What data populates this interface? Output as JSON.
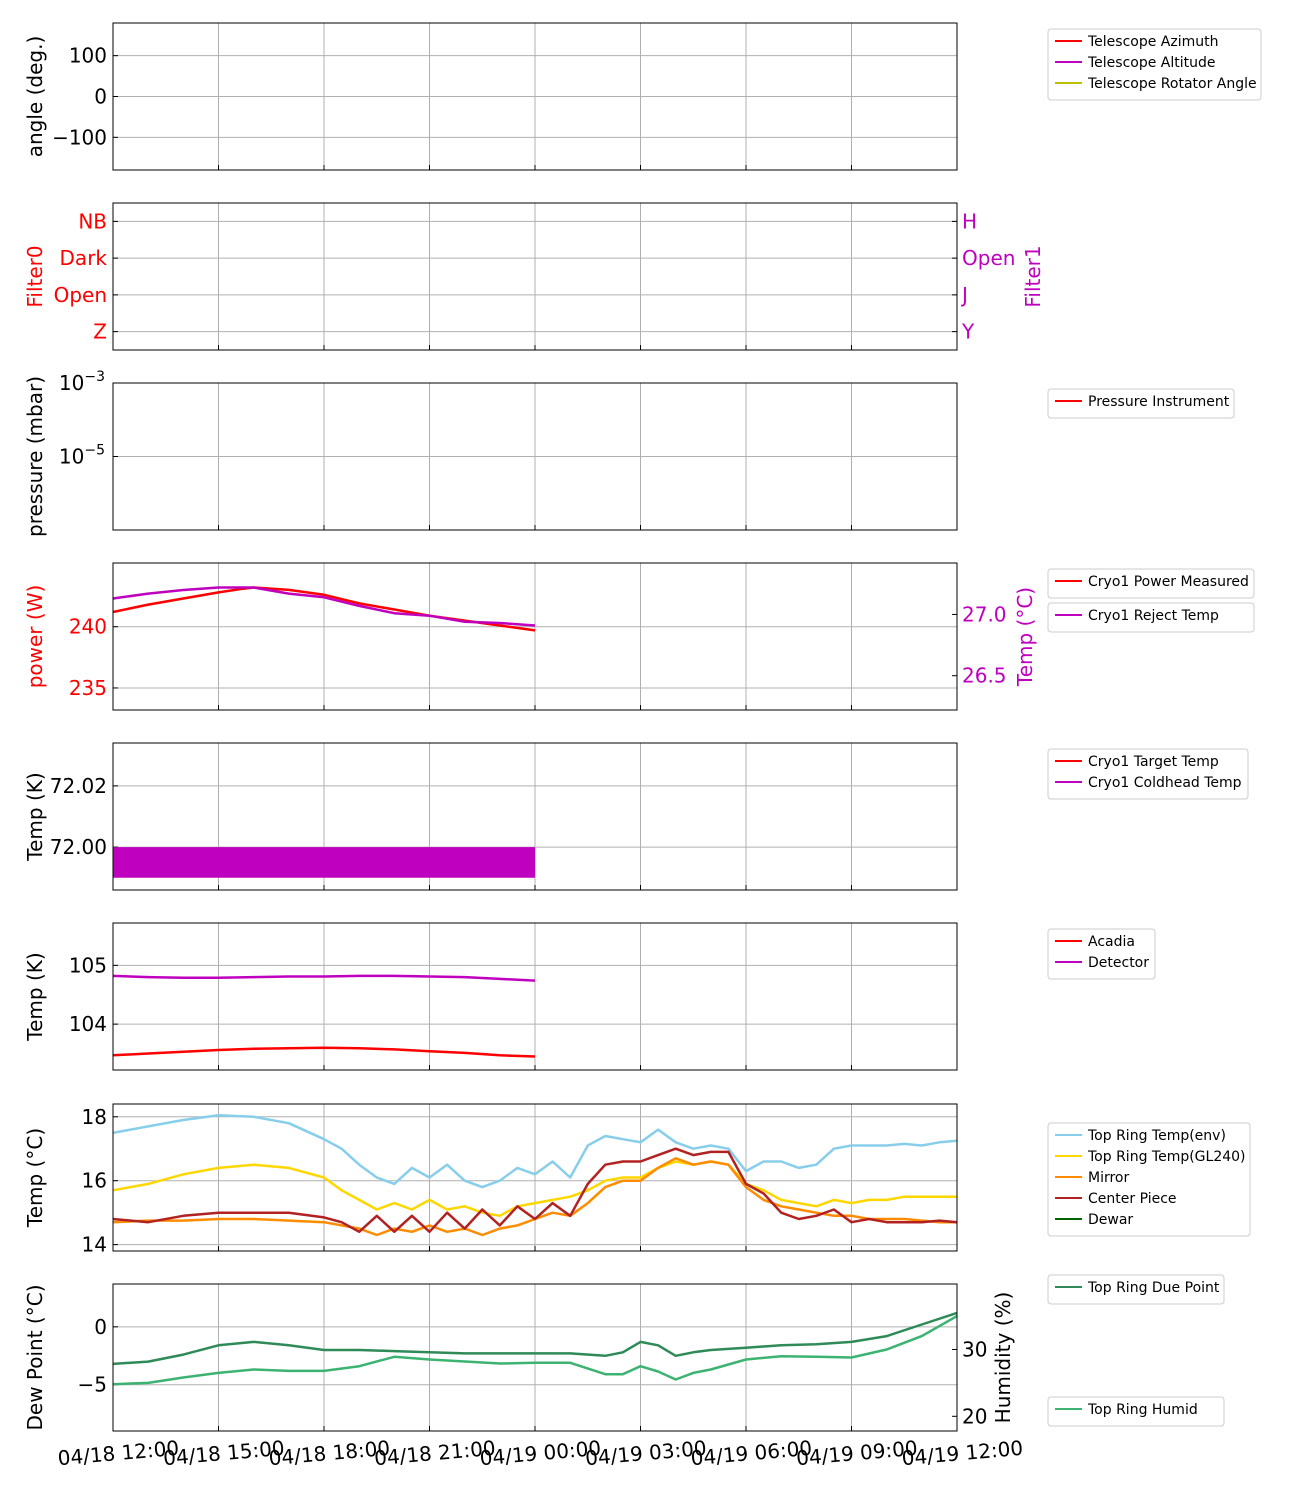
{
  "x_axis": {
    "ticks": [
      "04/18 12:00",
      "04/18 15:00",
      "04/18 18:00",
      "04/18 21:00",
      "04/19 00:00",
      "04/19 03:00",
      "04/19 06:00",
      "04/19 09:00",
      "04/19 12:00"
    ],
    "range_hours": [
      0,
      24
    ]
  },
  "chart_data": [
    {
      "id": "angles",
      "type": "line",
      "title": "",
      "ylabel": "angle (deg.)",
      "ylim": [
        -180,
        180
      ],
      "yticks": [
        {
          "v": 100,
          "label": "100"
        },
        {
          "v": 0,
          "label": "0"
        },
        {
          "v": -100,
          "label": "−100"
        }
      ],
      "grid": true,
      "legend_placement": "outside-right",
      "series": [
        {
          "name": "Telescope Azimuth",
          "color": "#ff0000",
          "x": [],
          "y": []
        },
        {
          "name": "Telescope Altitude",
          "color": "#bf00bf",
          "x": [],
          "y": []
        },
        {
          "name": "Telescope Rotator Angle",
          "color": "#bfbf00",
          "x": [],
          "y": []
        }
      ]
    },
    {
      "id": "filters",
      "type": "line",
      "title": "",
      "ylabel": "Filter0",
      "ylabel_color": "#ff0000",
      "ylim": [
        -0.5,
        3.5
      ],
      "yticks": [
        {
          "v": 3,
          "label": "NB"
        },
        {
          "v": 2,
          "label": "Dark"
        },
        {
          "v": 1,
          "label": "Open"
        },
        {
          "v": 0,
          "label": "Z"
        }
      ],
      "ytick_color": "#ff0000",
      "y2label": "Filter1",
      "y2label_color": "#bf00bf",
      "y2ticks": [
        {
          "v": 3,
          "label": "H"
        },
        {
          "v": 2,
          "label": "Open"
        },
        {
          "v": 1,
          "label": "J"
        },
        {
          "v": 0,
          "label": "Y"
        }
      ],
      "y2tick_color": "#bf00bf",
      "grid": true,
      "series": []
    },
    {
      "id": "pressure",
      "type": "line",
      "title": "",
      "ylabel": "pressure (mbar)",
      "yscale": "log",
      "ylim": [
        1e-07,
        0.001
      ],
      "yticks": [
        {
          "v": 0.001,
          "base": "10",
          "exp": "−3"
        },
        {
          "v": 1e-05,
          "base": "10",
          "exp": "−5"
        }
      ],
      "grid": true,
      "legend_placement": "outside-right",
      "series": [
        {
          "name": "Pressure Instrument",
          "color": "#ff0000",
          "x": [],
          "y": []
        }
      ]
    },
    {
      "id": "cryo_power",
      "type": "line",
      "title": "",
      "ylabel": "power (W)",
      "ylabel_color": "#ff0000",
      "ylim": [
        233.2,
        245.2
      ],
      "yticks": [
        {
          "v": 240,
          "label": "240"
        },
        {
          "v": 235,
          "label": "235"
        }
      ],
      "ytick_color": "#ff0000",
      "y2label": "Temp (°C)",
      "y2label_color": "#bf00bf",
      "y2lim": [
        26.22,
        27.42
      ],
      "y2ticks": [
        {
          "v": 27.0,
          "label": "27.0"
        },
        {
          "v": 26.5,
          "label": "26.5"
        }
      ],
      "y2tick_color": "#bf00bf",
      "grid": true,
      "legend_placement": "outside-right",
      "series": [
        {
          "name": "Cryo1 Power Measured",
          "color": "#ff0000",
          "axis": "y",
          "x": [
            0,
            1,
            2,
            3,
            3.7,
            4,
            5,
            6,
            7,
            8,
            9,
            10,
            11,
            12
          ],
          "y": [
            241.2,
            241.8,
            242.3,
            242.8,
            243.1,
            243.2,
            243.0,
            242.6,
            241.9,
            241.4,
            240.9,
            240.5,
            240.1,
            239.7
          ]
        },
        {
          "name": "Cryo1 Reject Temp",
          "color": "#bf00bf",
          "axis": "y2",
          "x": [
            0,
            1,
            2,
            3,
            4,
            5,
            6,
            7,
            8,
            9,
            10,
            11,
            12
          ],
          "y": [
            27.13,
            27.17,
            27.2,
            27.22,
            27.22,
            27.17,
            27.14,
            27.07,
            27.01,
            26.99,
            26.94,
            26.93,
            26.91
          ]
        }
      ]
    },
    {
      "id": "cryo_temp",
      "type": "line",
      "title": "",
      "ylabel": "Temp (K)",
      "ylim": [
        71.986,
        72.034
      ],
      "yticks": [
        {
          "v": 72.02,
          "label": "72.02"
        },
        {
          "v": 72.0,
          "label": "72.00"
        }
      ],
      "grid": true,
      "legend_placement": "outside-right",
      "series": [
        {
          "name": "Cryo1 Target Temp",
          "color": "#ff0000",
          "x": [],
          "y": []
        },
        {
          "name": "Cryo1 Coldhead Temp",
          "color": "#bf00bf",
          "band": [
            71.99,
            72.0
          ],
          "x": [
            0,
            12
          ],
          "y": [
            72.0,
            72.0
          ]
        }
      ]
    },
    {
      "id": "acadia",
      "type": "line",
      "title": "",
      "ylabel": "Temp (K)",
      "ylim": [
        103.22,
        105.72
      ],
      "yticks": [
        {
          "v": 105,
          "label": "105"
        },
        {
          "v": 104,
          "label": "104"
        }
      ],
      "grid": true,
      "legend_placement": "outside-right",
      "series": [
        {
          "name": "Acadia",
          "color": "#ff0000",
          "x": [
            0,
            1,
            2,
            3,
            4,
            5,
            6,
            7,
            8,
            9,
            10,
            11,
            12
          ],
          "y": [
            103.47,
            103.5,
            103.53,
            103.56,
            103.58,
            103.59,
            103.6,
            103.59,
            103.57,
            103.54,
            103.51,
            103.47,
            103.45
          ]
        },
        {
          "name": "Detector",
          "color": "#bf00bf",
          "x": [
            0,
            1,
            2,
            3,
            4,
            5,
            6,
            7,
            8,
            9,
            10,
            11,
            12
          ],
          "y": [
            104.82,
            104.8,
            104.79,
            104.79,
            104.8,
            104.81,
            104.81,
            104.82,
            104.82,
            104.81,
            104.8,
            104.77,
            104.74
          ]
        }
      ]
    },
    {
      "id": "ring_temp",
      "type": "line",
      "title": "",
      "ylabel": "Temp (°C)",
      "ylim": [
        13.8,
        18.4
      ],
      "yticks": [
        {
          "v": 18,
          "label": "18"
        },
        {
          "v": 16,
          "label": "16"
        },
        {
          "v": 14,
          "label": "14"
        }
      ],
      "grid": true,
      "legend_placement": "outside-right",
      "series": [
        {
          "name": "Top Ring Temp(env)",
          "color": "#87ceeb",
          "x": [
            0,
            1,
            2,
            3,
            4,
            5,
            6,
            6.5,
            7,
            7.5,
            8,
            8.5,
            9,
            9.5,
            10,
            10.5,
            11,
            11.5,
            12,
            12.5,
            13,
            13.5,
            14,
            14.5,
            15,
            15.5,
            16,
            16.5,
            17,
            17.5,
            18,
            18.5,
            19,
            19.5,
            20,
            20.5,
            21,
            21.5,
            22,
            22.5,
            23,
            23.5,
            24
          ],
          "y": [
            17.5,
            17.7,
            17.9,
            18.05,
            18.0,
            17.8,
            17.3,
            17.0,
            16.5,
            16.1,
            15.9,
            16.4,
            16.1,
            16.5,
            16.0,
            15.8,
            16.0,
            16.4,
            16.2,
            16.6,
            16.1,
            17.1,
            17.4,
            17.3,
            17.2,
            17.6,
            17.2,
            17.0,
            17.1,
            17.0,
            16.3,
            16.6,
            16.6,
            16.4,
            16.5,
            17.0,
            17.1,
            17.1,
            17.1,
            17.15,
            17.1,
            17.2,
            17.25
          ]
        },
        {
          "name": "Top Ring Temp(GL240)",
          "color": "#ffd700",
          "x": [
            0,
            1,
            2,
            3,
            4,
            5,
            6,
            6.5,
            7,
            7.5,
            8,
            8.5,
            9,
            9.5,
            10,
            10.5,
            11,
            11.5,
            12,
            12.5,
            13,
            13.5,
            14,
            14.5,
            15,
            15.5,
            16,
            16.5,
            17,
            17.5,
            18,
            18.5,
            19,
            19.5,
            20,
            20.5,
            21,
            21.5,
            22,
            22.5,
            23,
            23.5,
            24
          ],
          "y": [
            15.7,
            15.9,
            16.2,
            16.4,
            16.5,
            16.4,
            16.1,
            15.7,
            15.4,
            15.1,
            15.3,
            15.1,
            15.4,
            15.1,
            15.2,
            15.0,
            14.9,
            15.2,
            15.3,
            15.4,
            15.5,
            15.7,
            16.0,
            16.1,
            16.1,
            16.4,
            16.6,
            16.5,
            16.6,
            16.5,
            15.9,
            15.7,
            15.4,
            15.3,
            15.2,
            15.4,
            15.3,
            15.4,
            15.4,
            15.5,
            15.5,
            15.5,
            15.5
          ]
        },
        {
          "name": "Mirror",
          "color": "#ff8c00",
          "x": [
            0,
            1,
            2,
            3,
            4,
            5,
            6,
            6.5,
            7,
            7.5,
            8,
            8.5,
            9,
            9.5,
            10,
            10.5,
            11,
            11.5,
            12,
            12.5,
            13,
            13.5,
            14,
            14.5,
            15,
            15.5,
            16,
            16.5,
            17,
            17.5,
            18,
            18.5,
            19,
            19.5,
            20,
            20.5,
            21,
            21.5,
            22,
            22.5,
            23,
            23.5,
            24
          ],
          "y": [
            14.7,
            14.75,
            14.75,
            14.8,
            14.8,
            14.75,
            14.7,
            14.6,
            14.5,
            14.3,
            14.5,
            14.4,
            14.6,
            14.4,
            14.5,
            14.3,
            14.5,
            14.6,
            14.8,
            15.0,
            14.9,
            15.3,
            15.8,
            16.0,
            16.0,
            16.4,
            16.7,
            16.5,
            16.6,
            16.5,
            15.8,
            15.4,
            15.2,
            15.1,
            15.0,
            14.9,
            14.9,
            14.8,
            14.8,
            14.8,
            14.75,
            14.7,
            14.7
          ]
        },
        {
          "name": "Center Piece",
          "color": "#b22222",
          "x": [
            0,
            1,
            2,
            3,
            4,
            5,
            6,
            6.5,
            7,
            7.5,
            8,
            8.5,
            9,
            9.5,
            10,
            10.5,
            11,
            11.5,
            12,
            12.5,
            13,
            13.5,
            14,
            14.5,
            15,
            15.5,
            16,
            16.5,
            17,
            17.5,
            18,
            18.5,
            19,
            19.5,
            20,
            20.5,
            21,
            21.5,
            22,
            22.5,
            23,
            23.5,
            24
          ],
          "y": [
            14.8,
            14.7,
            14.9,
            15.0,
            15.0,
            15.0,
            14.85,
            14.7,
            14.4,
            14.9,
            14.4,
            14.9,
            14.4,
            15.0,
            14.5,
            15.1,
            14.6,
            15.2,
            14.8,
            15.3,
            14.9,
            15.9,
            16.5,
            16.6,
            16.6,
            16.8,
            17.0,
            16.8,
            16.9,
            16.9,
            15.9,
            15.6,
            15.0,
            14.8,
            14.9,
            15.1,
            14.7,
            14.8,
            14.7,
            14.7,
            14.7,
            14.75,
            14.7
          ]
        },
        {
          "name": "Dewar",
          "color": "#006400",
          "x": [],
          "y": []
        }
      ]
    },
    {
      "id": "dew_point",
      "type": "line",
      "title": "",
      "ylabel": "Dew Point (°C)",
      "ylim": [
        -9,
        3.7
      ],
      "yticks": [
        {
          "v": 0,
          "label": "0"
        },
        {
          "v": -5,
          "label": "−5"
        }
      ],
      "y2label": "Humidity (%)",
      "y2lim": [
        17.8,
        39.8
      ],
      "y2ticks": [
        {
          "v": 30,
          "label": "30"
        },
        {
          "v": 20,
          "label": "20"
        }
      ],
      "grid": true,
      "legend_placement": "outside-right",
      "series": [
        {
          "name": "Top Ring Due Point",
          "color": "#2e8b57",
          "axis": "y",
          "x": [
            0,
            1,
            2,
            3,
            4,
            5,
            6,
            7,
            8,
            9,
            10,
            11,
            12,
            13,
            14,
            14.5,
            15,
            15.5,
            16,
            16.5,
            17,
            18,
            19,
            20,
            21,
            22,
            23,
            24
          ],
          "y": [
            -3.2,
            -3.0,
            -2.4,
            -1.6,
            -1.3,
            -1.6,
            -2.0,
            -2.0,
            -2.1,
            -2.2,
            -2.3,
            -2.3,
            -2.3,
            -2.3,
            -2.5,
            -2.2,
            -1.3,
            -1.6,
            -2.5,
            -2.2,
            -2.0,
            -1.8,
            -1.6,
            -1.5,
            -1.3,
            -0.8,
            0.2,
            1.2
          ]
        },
        {
          "name": "Top Ring Humid",
          "color": "#3cb371",
          "axis": "y2",
          "x": [
            0,
            1,
            2,
            3,
            4,
            5,
            6,
            7,
            8,
            9,
            10,
            11,
            12,
            13,
            14,
            14.5,
            15,
            15.5,
            16,
            16.5,
            17,
            18,
            19,
            20,
            21,
            22,
            23,
            24
          ],
          "y": [
            24.8,
            25.0,
            25.8,
            26.5,
            27.0,
            26.8,
            26.8,
            27.5,
            28.9,
            28.5,
            28.2,
            27.9,
            28.0,
            28.0,
            26.3,
            26.3,
            27.5,
            26.7,
            25.5,
            26.5,
            27.0,
            28.5,
            29.0,
            28.9,
            28.8,
            30.0,
            32.0,
            35.0
          ]
        }
      ]
    }
  ]
}
